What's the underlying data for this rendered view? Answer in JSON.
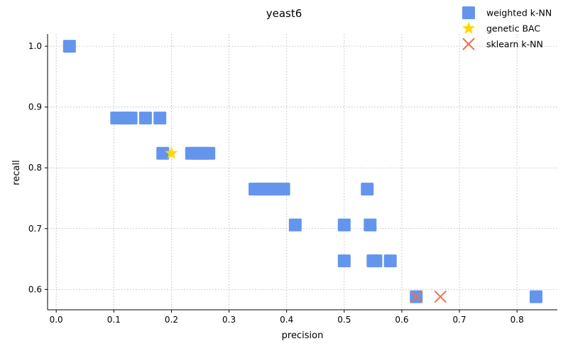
{
  "chart_data": {
    "type": "scatter",
    "title": "yeast6",
    "xlabel": "precision",
    "ylabel": "recall",
    "xlim": [
      -0.015,
      0.87
    ],
    "ylim": [
      0.5665,
      1.02
    ],
    "xticks": [
      0.0,
      0.1,
      0.2,
      0.3,
      0.4,
      0.5,
      0.6,
      0.7,
      0.8
    ],
    "xtick_labels": [
      "0.0",
      "0.1",
      "0.2",
      "0.3",
      "0.4",
      "0.5",
      "0.6",
      "0.7",
      "0.8"
    ],
    "yticks": [
      0.6,
      0.7,
      0.8,
      0.9,
      1.0
    ],
    "ytick_labels": [
      "0.6",
      "0.7",
      "0.8",
      "0.9",
      "1.0"
    ],
    "grid": true,
    "legend_placement": "top-right",
    "series": [
      {
        "name": "weighted k-NN",
        "marker": "square",
        "color": "#6495ED",
        "points": [
          [
            0.023,
            1.0
          ],
          [
            0.105,
            0.882
          ],
          [
            0.115,
            0.882
          ],
          [
            0.125,
            0.882
          ],
          [
            0.13,
            0.882
          ],
          [
            0.155,
            0.882
          ],
          [
            0.18,
            0.882
          ],
          [
            0.185,
            0.824
          ],
          [
            0.235,
            0.824
          ],
          [
            0.245,
            0.824
          ],
          [
            0.255,
            0.824
          ],
          [
            0.265,
            0.824
          ],
          [
            0.345,
            0.765
          ],
          [
            0.355,
            0.765
          ],
          [
            0.365,
            0.765
          ],
          [
            0.375,
            0.765
          ],
          [
            0.385,
            0.765
          ],
          [
            0.395,
            0.765
          ],
          [
            0.54,
            0.765
          ],
          [
            0.415,
            0.706
          ],
          [
            0.5,
            0.706
          ],
          [
            0.545,
            0.706
          ],
          [
            0.5,
            0.647
          ],
          [
            0.55,
            0.647
          ],
          [
            0.555,
            0.647
          ],
          [
            0.58,
            0.647
          ],
          [
            0.625,
            0.588
          ],
          [
            0.833,
            0.588
          ]
        ]
      },
      {
        "name": "genetic BAC",
        "marker": "star",
        "color": "#FFD700",
        "points": [
          [
            0.2,
            0.824
          ]
        ]
      },
      {
        "name": "sklearn k-NN",
        "marker": "x",
        "color": "#F07050",
        "points": [
          [
            0.625,
            0.588
          ],
          [
            0.667,
            0.588
          ]
        ]
      }
    ]
  }
}
